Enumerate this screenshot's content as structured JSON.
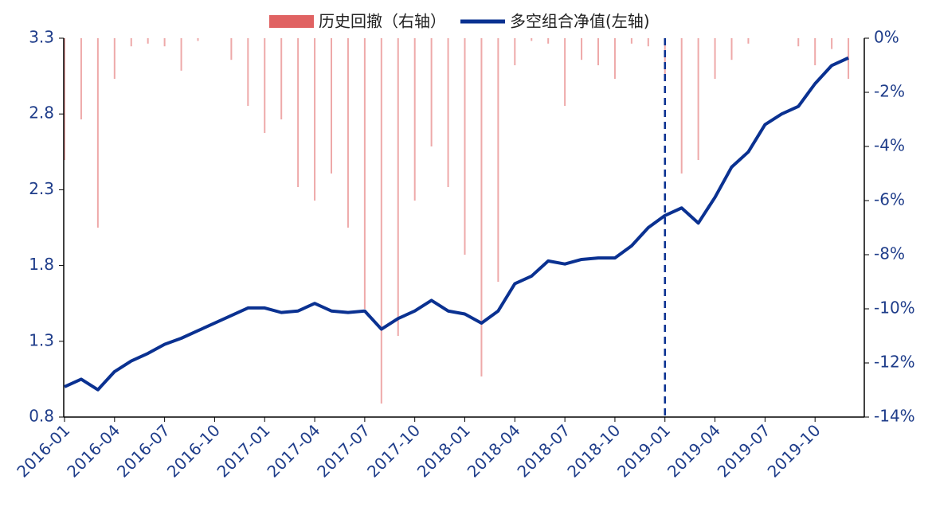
{
  "chart_data": {
    "type": "line_bar",
    "categories": [
      "2016-01",
      null,
      null,
      "2016-04",
      null,
      null,
      "2016-07",
      null,
      null,
      "2016-10",
      null,
      null,
      "2017-01",
      null,
      null,
      "2017-04",
      null,
      null,
      "2017-07",
      null,
      null,
      "2017-10",
      null,
      null,
      "2018-01",
      null,
      null,
      "2018-04",
      null,
      null,
      "2018-07",
      null,
      null,
      "2018-10",
      null,
      null,
      "2019-01",
      null,
      null,
      "2019-04",
      null,
      null,
      "2019-07",
      null,
      null,
      "2019-10",
      null,
      null
    ],
    "series": [
      {
        "name": "历史回撤（右轴）",
        "type": "bar",
        "axis": "y2",
        "color": "#e06262",
        "values": [
          -4.5,
          -3,
          -7,
          -1.5,
          -0.3,
          -0.2,
          -0.3,
          -1.2,
          -0.1,
          0,
          -0.8,
          -2.5,
          -3.5,
          -3,
          -5.5,
          -6,
          -5,
          -7,
          -10,
          -13.5,
          -11,
          -6,
          -4,
          -5.5,
          -8,
          -12.5,
          -9,
          -1,
          -0.1,
          -0.2,
          -2.5,
          -0.8,
          -1,
          -1.5,
          -0.2,
          -0.3,
          -1.5,
          -5,
          -4.5,
          -1.5,
          -0.8,
          -0.2,
          0,
          0,
          -0.3,
          -1,
          -0.4,
          -1.5
        ]
      },
      {
        "name": "多空组合净值(左轴)",
        "type": "line",
        "color": "#0a3191",
        "values": [
          1.0,
          1.05,
          0.98,
          1.1,
          1.17,
          1.22,
          1.28,
          1.32,
          1.37,
          1.42,
          1.47,
          1.52,
          1.52,
          1.49,
          1.5,
          1.55,
          1.5,
          1.49,
          1.5,
          1.38,
          1.45,
          1.5,
          1.57,
          1.5,
          1.48,
          1.42,
          1.5,
          1.68,
          1.73,
          1.83,
          1.81,
          1.84,
          1.85,
          1.85,
          1.93,
          2.05,
          2.13,
          2.18,
          2.08,
          2.25,
          2.45,
          2.55,
          2.73,
          2.8,
          2.85,
          3.0,
          3.12,
          3.17
        ]
      }
    ],
    "ylim": [
      0.8,
      3.3
    ],
    "yticks": [
      0.8,
      1.3,
      1.8,
      2.3,
      2.8,
      3.3
    ],
    "y2lim": [
      -14,
      0
    ],
    "y2ticks": [
      {
        "value": 0,
        "label": "0%"
      },
      {
        "value": -2,
        "label": "-2%"
      },
      {
        "value": -4,
        "label": "-4%"
      },
      {
        "value": -6,
        "label": "-6%"
      },
      {
        "value": -8,
        "label": "-8%"
      },
      {
        "value": -10,
        "label": "-10%"
      },
      {
        "value": -12,
        "label": "-12%"
      },
      {
        "value": -14,
        "label": "-14%"
      }
    ],
    "divider": "2019-01",
    "legend": "top"
  }
}
